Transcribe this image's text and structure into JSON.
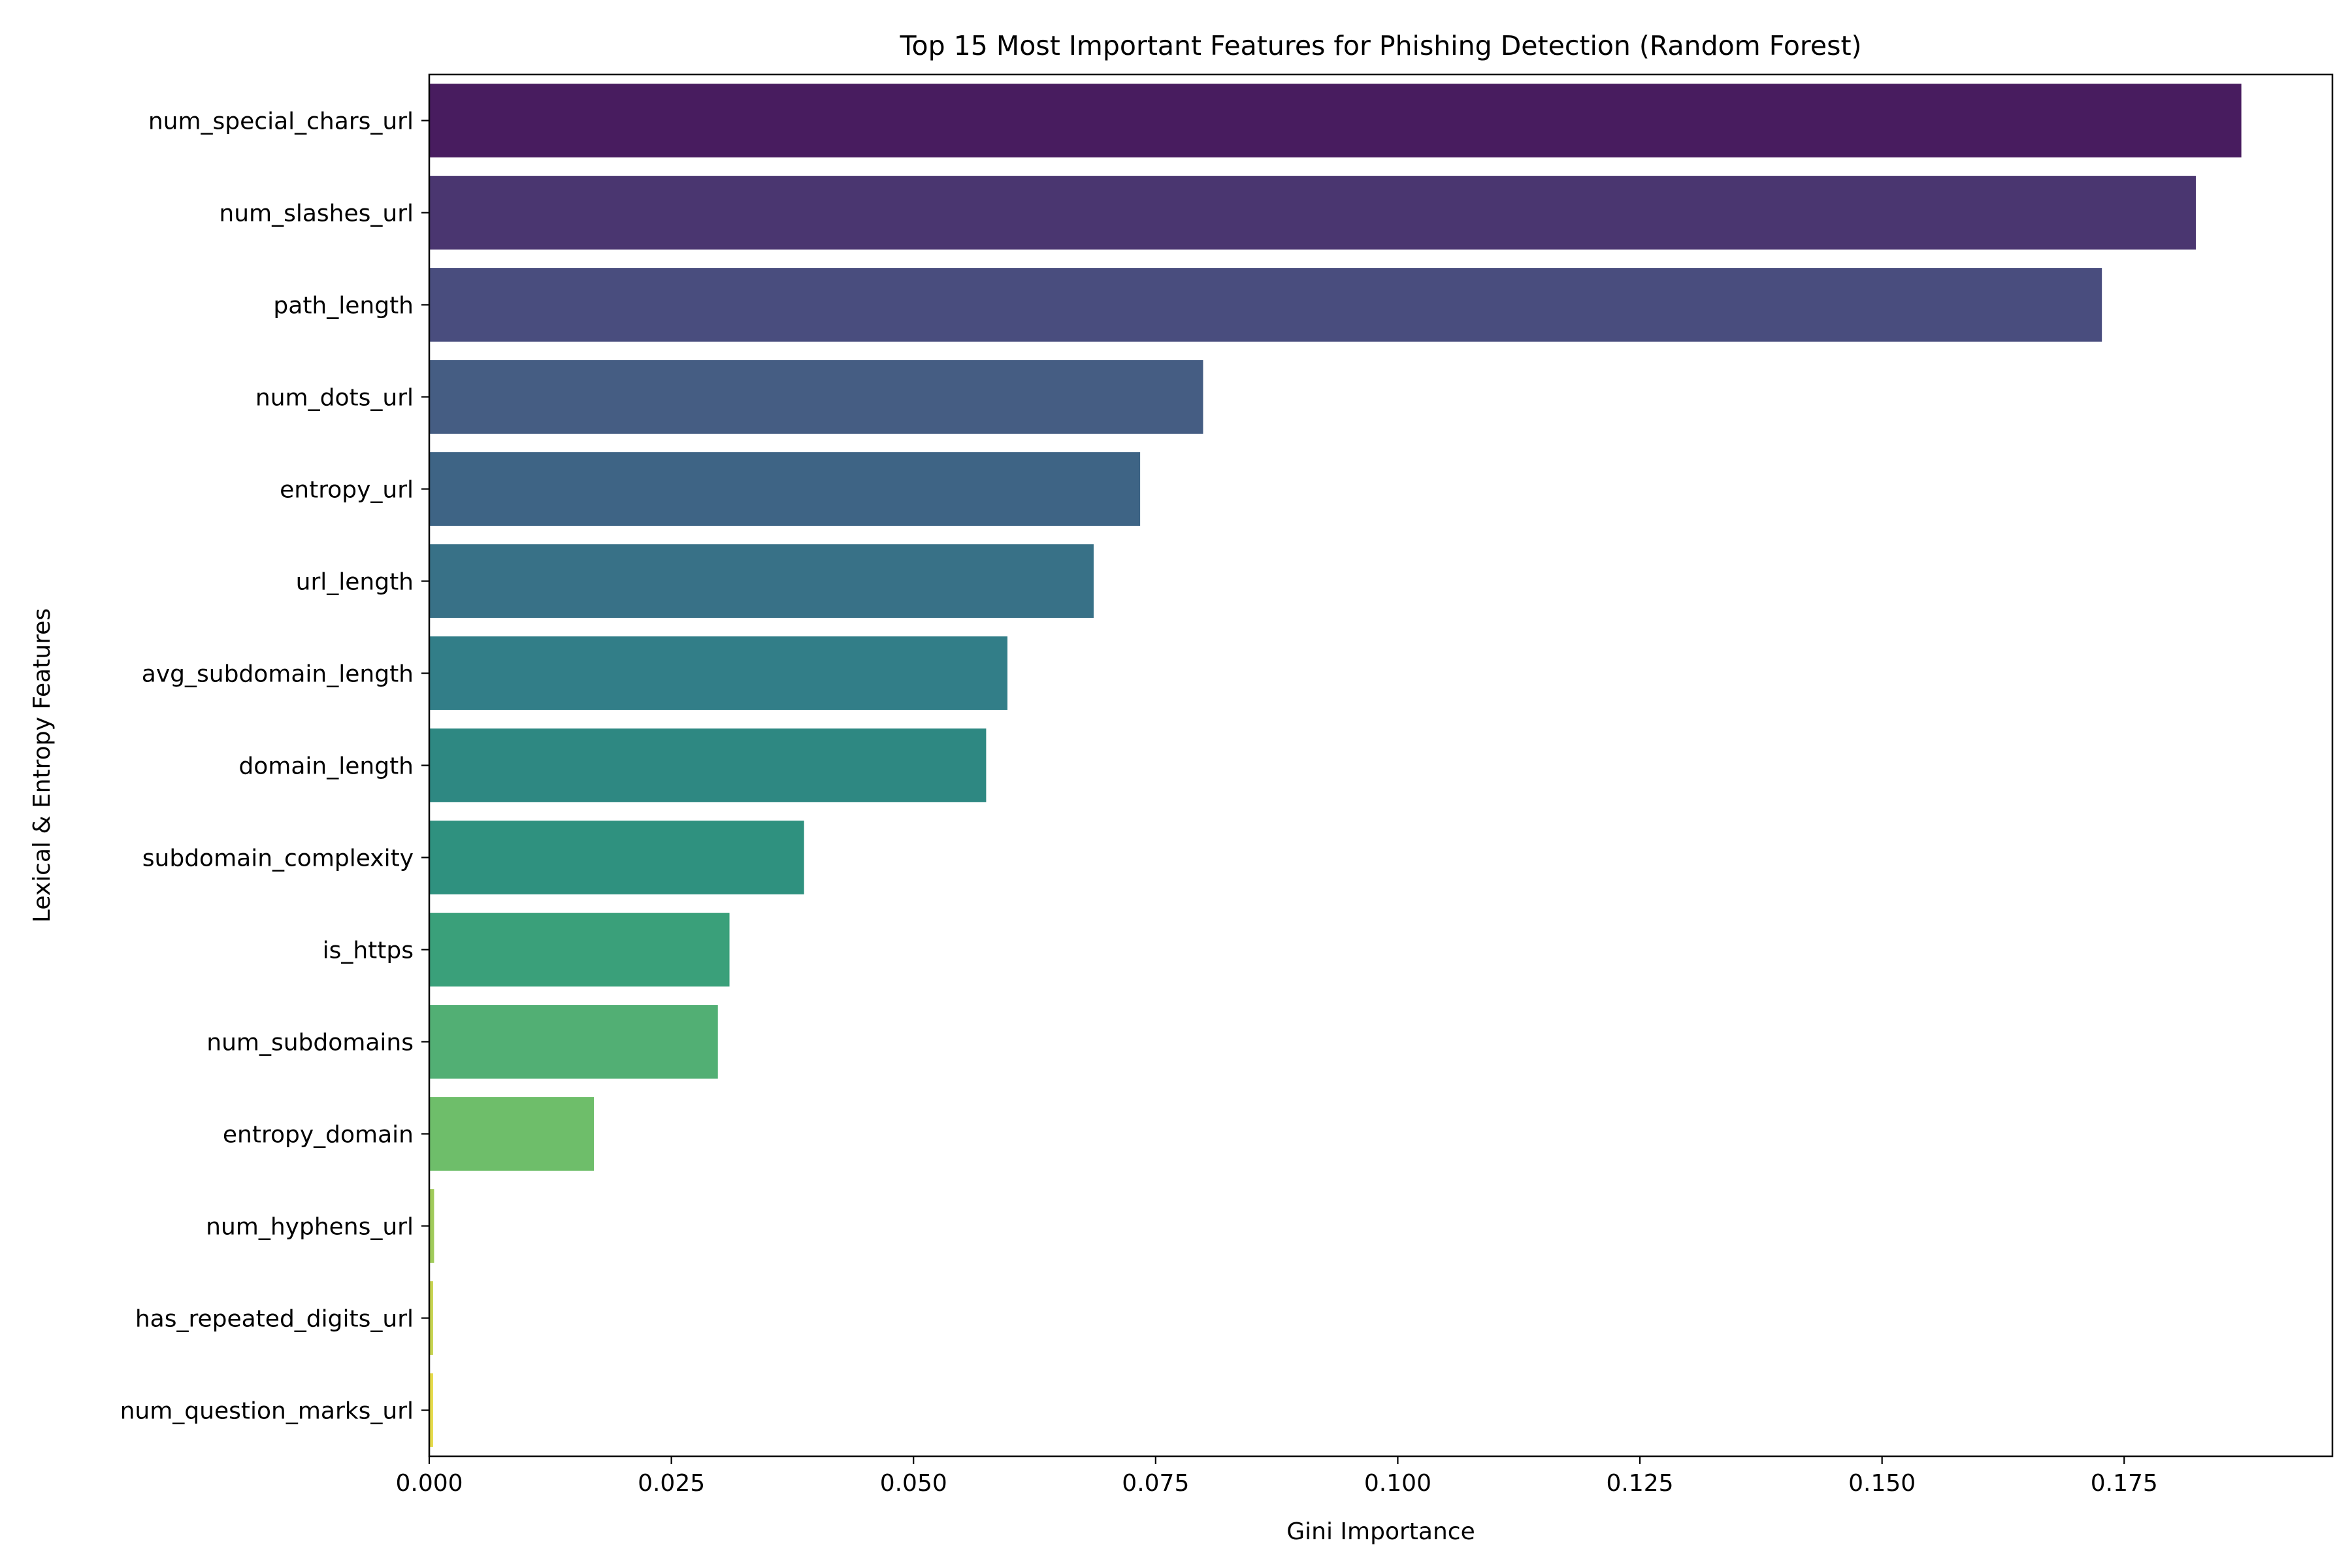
{
  "chart_data": {
    "type": "bar",
    "orientation": "horizontal",
    "title": "Top 15 Most Important Features for Phishing Detection (Random Forest)",
    "xlabel": "Gini Importance",
    "ylabel": "Lexical & Entropy Features",
    "xlim": [
      0,
      0.1965
    ],
    "xticks": [
      "0.000",
      "0.025",
      "0.050",
      "0.075",
      "0.100",
      "0.125",
      "0.150",
      "0.175"
    ],
    "grid": false,
    "categories": [
      "num_special_chars_url",
      "num_slashes_url",
      "path_length",
      "num_dots_url",
      "entropy_url",
      "url_length",
      "avg_subdomain_length",
      "domain_length",
      "subdomain_complexity",
      "is_https",
      "num_subdomains",
      "entropy_domain",
      "num_hyphens_url",
      "has_repeated_digits_url",
      "num_question_marks_url"
    ],
    "values": [
      0.1871,
      0.1824,
      0.1727,
      0.0799,
      0.0734,
      0.0686,
      0.0597,
      0.0575,
      0.0387,
      0.031,
      0.0298,
      0.017,
      0.0005,
      0.0004,
      0.0004
    ],
    "colors": [
      "#481c5f",
      "#4a3670",
      "#494d7e",
      "#455d83",
      "#3e6485",
      "#387187",
      "#327e88",
      "#2e8882",
      "#2f917f",
      "#3aa07a",
      "#52af74",
      "#6ebe6a",
      "#a0cb5a",
      "#c6d350",
      "#e5da4a"
    ]
  }
}
